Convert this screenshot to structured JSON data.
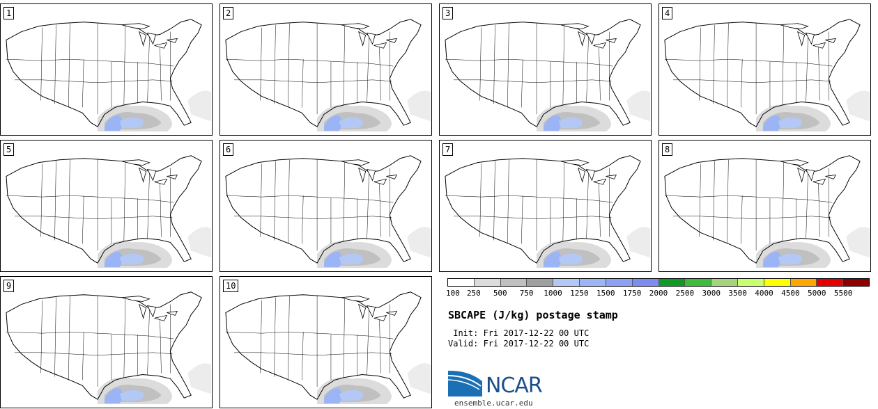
{
  "members": [
    "1",
    "2",
    "3",
    "4",
    "5",
    "6",
    "7",
    "8",
    "9",
    "10"
  ],
  "colorbar": {
    "colors": [
      "#ffffff",
      "#dcdcdc",
      "#c0c0c0",
      "#a0a0a0",
      "#b4c8f5",
      "#9bb4f5",
      "#8ca0f5",
      "#7d8cf0",
      "#0f9b28",
      "#3cbe3c",
      "#a5d27d",
      "#c8ff6e",
      "#ffff00",
      "#ffa500",
      "#e60000",
      "#8c0000"
    ],
    "ticks": [
      "100",
      "250",
      "500",
      "750",
      "1000",
      "1250",
      "1500",
      "1750",
      "2000",
      "2500",
      "3000",
      "3500",
      "4000",
      "4500",
      "5000",
      "5500"
    ]
  },
  "title": "SBCAPE (J/kg) postage stamp",
  "init": " Init: Fri 2017-12-22 00 UTC",
  "valid": "Valid: Fri 2017-12-22 00 UTC",
  "logo": {
    "name": "NCAR",
    "url": "ensemble.ucar.edu"
  }
}
